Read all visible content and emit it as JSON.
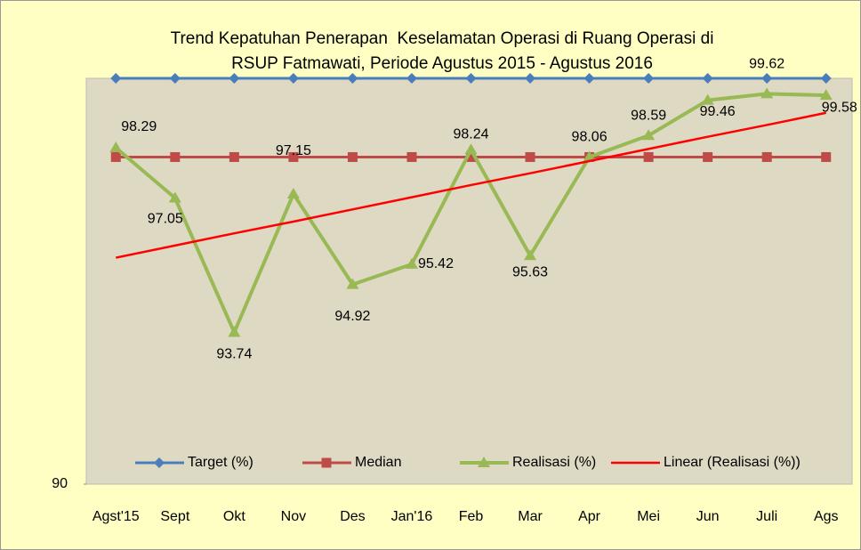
{
  "chart_data": {
    "type": "line",
    "title": [
      "Trend Kepatuhan Penerapan  Keselamatan Operasi di Ruang Operasi di",
      "RSUP Fatmawati, Periode Agustus 2015 - Agustus 2016"
    ],
    "categories": [
      "Agst'15",
      "Sept",
      "Okt",
      "Nov",
      "Des",
      "Jan'16",
      "Feb",
      "Mar",
      "Apr",
      "Mei",
      "Jun",
      "Juli",
      "Ags"
    ],
    "series": [
      {
        "name": "Target (%)",
        "color": "#4a7ebb",
        "marker": "diamond",
        "values": [
          100,
          100,
          100,
          100,
          100,
          100,
          100,
          100,
          100,
          100,
          100,
          100,
          100
        ]
      },
      {
        "name": "Median",
        "color": "#be4b48",
        "marker": "square",
        "values": [
          98.06,
          98.06,
          98.06,
          98.06,
          98.06,
          98.06,
          98.06,
          98.06,
          98.06,
          98.06,
          98.06,
          98.06,
          98.06
        ]
      },
      {
        "name": "Realisasi (%)",
        "color": "#98b954",
        "marker": "triangle",
        "values": [
          98.29,
          97.05,
          93.74,
          97.15,
          94.92,
          95.42,
          98.24,
          95.63,
          98.06,
          98.59,
          99.46,
          99.62,
          99.58
        ],
        "data_labels": true
      },
      {
        "name": "Linear (Realisasi (%))",
        "color": "#ff0000",
        "marker": "none",
        "values": [
          95.58,
          95.88,
          96.18,
          96.47,
          96.77,
          97.07,
          97.37,
          97.66,
          97.96,
          98.26,
          98.56,
          98.85,
          99.15
        ]
      }
    ],
    "ylim": [
      90,
      100
    ],
    "yticks": [
      90
    ],
    "legend": "bottom"
  }
}
